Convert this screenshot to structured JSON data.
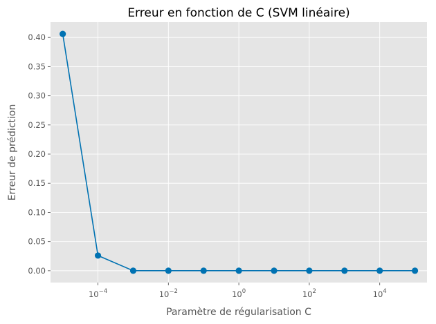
{
  "chart_data": {
    "type": "line",
    "title": "Erreur en fonction de C (SVM linéaire)",
    "xlabel": "Paramètre de régularisation C",
    "ylabel": "Erreur de prédiction",
    "x_scale": "log",
    "x": [
      1e-05,
      0.0001,
      0.001,
      0.01,
      0.1,
      1,
      10,
      100,
      1000,
      10000,
      100000
    ],
    "series": [
      {
        "values": [
          0.406,
          0.026,
          0.0,
          0.0,
          0.0,
          0.0,
          0.0,
          0.0,
          0.0,
          0.0,
          0.0
        ]
      }
    ],
    "xlim": [
      4.5e-06,
      220000
    ],
    "ylim": [
      -0.0203,
      0.4263
    ],
    "yticks": [
      0.0,
      0.05,
      0.1,
      0.15,
      0.2,
      0.25,
      0.3,
      0.35,
      0.4
    ],
    "ytick_labels": [
      "0.00",
      "0.05",
      "0.10",
      "0.15",
      "0.20",
      "0.25",
      "0.30",
      "0.35",
      "0.40"
    ],
    "xticks": [
      {
        "value": 0.0001,
        "base": "10",
        "exp": "−4"
      },
      {
        "value": 0.01,
        "base": "10",
        "exp": "−2"
      },
      {
        "value": 1,
        "base": "10",
        "exp": "0"
      },
      {
        "value": 100,
        "base": "10",
        "exp": "2"
      },
      {
        "value": 10000,
        "base": "10",
        "exp": "4"
      }
    ],
    "grid": true,
    "colors": {
      "line": "#0072b2",
      "background": "#e5e5e5",
      "grid": "#ffffff"
    }
  }
}
